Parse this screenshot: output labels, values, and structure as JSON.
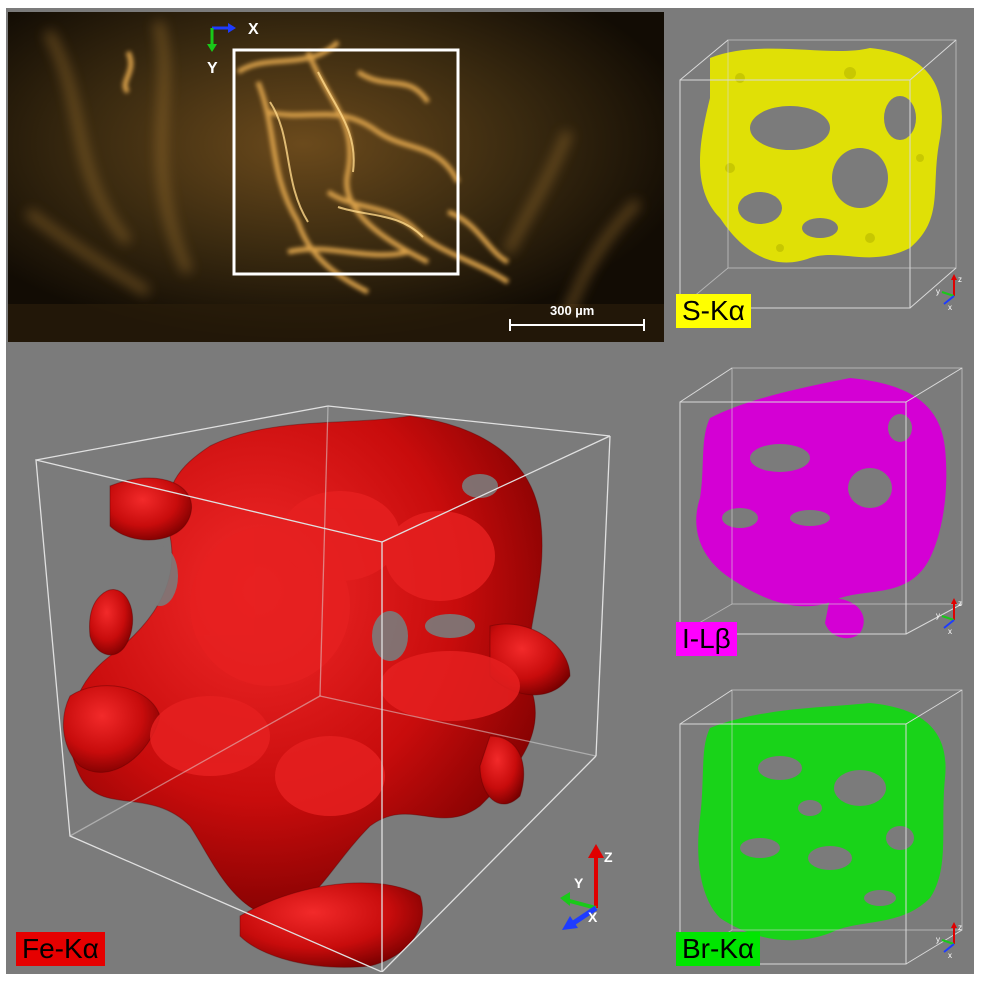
{
  "photo": {
    "scale_bar_label": "300 µm",
    "axis_x_label": "X",
    "axis_y_label": "Y"
  },
  "panels": {
    "s": {
      "label": "S-Kα",
      "color": "#e6e600",
      "axes": {
        "z": "z",
        "y": "y",
        "x": "x"
      }
    },
    "i": {
      "label": "I-Lβ",
      "color": "#e600e6",
      "axes": {
        "z": "z",
        "y": "y",
        "x": "x"
      }
    },
    "br": {
      "label": "Br-Kα",
      "color": "#19d319",
      "axes": {
        "z": "z",
        "y": "y",
        "x": "x"
      }
    },
    "fe": {
      "label": "Fe-Kα",
      "color": "#e60000",
      "axes": {
        "z": "Z",
        "y": "Y",
        "x": "X"
      }
    }
  }
}
